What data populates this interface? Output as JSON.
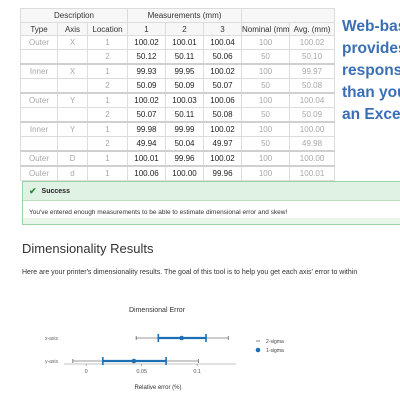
{
  "table": {
    "group_headers": [
      "Description",
      "Measurements (mm)"
    ],
    "columns": [
      "Type",
      "Axis",
      "Location",
      "1",
      "2",
      "3",
      "Nominal (mm)",
      "Avg. (mm)"
    ],
    "rows": [
      [
        "Outer",
        "X",
        "1",
        "100.02",
        "100.01",
        "100.04",
        "100",
        "100.02"
      ],
      [
        "",
        "",
        "2",
        "50.12",
        "50.11",
        "50.06",
        "50",
        "50.10"
      ],
      [
        "Inner",
        "X",
        "1",
        "99.93",
        "99.95",
        "100.02",
        "100",
        "99.97"
      ],
      [
        "",
        "",
        "2",
        "50.09",
        "50.09",
        "50.07",
        "50",
        "50.08"
      ],
      [
        "Outer",
        "Y",
        "1",
        "100.02",
        "100.03",
        "100.06",
        "100",
        "100.04"
      ],
      [
        "",
        "",
        "2",
        "50.07",
        "50.11",
        "50.08",
        "50",
        "50.09"
      ],
      [
        "Inner",
        "Y",
        "1",
        "99.98",
        "99.99",
        "100.02",
        "100",
        "100.00"
      ],
      [
        "",
        "",
        "2",
        "49.94",
        "50.04",
        "49.97",
        "50",
        "49.98"
      ],
      [
        "Outer",
        "D",
        "1",
        "100.01",
        "99.96",
        "100.02",
        "100",
        "100.00"
      ],
      [
        "Outer",
        "d",
        "1",
        "100.06",
        "100.00",
        "99.96",
        "100",
        "100.01"
      ]
    ]
  },
  "promo": {
    "lines": [
      "Web-bas",
      "provides",
      "respons",
      "than you",
      "an Excel"
    ]
  },
  "alert": {
    "title": "Success",
    "message": "You've entered enough measurements to be able to estimate dimensional error and skew!"
  },
  "results": {
    "title": "Dimensionality Results",
    "description": "Here are your printer's dimensionality results. The goal of this tool is to help you get each axis' error to within"
  },
  "chart_data": {
    "type": "scatter",
    "title": "Dimensional Error",
    "xlabel": "Relative error (%)",
    "ylabel": "",
    "xlim": [
      -0.02,
      0.135
    ],
    "x_ticks": [
      "0",
      "0.05",
      "0.1"
    ],
    "categories": [
      "x-axis",
      "y-axis"
    ],
    "legend": {
      "position": "right",
      "entries": [
        "2-sigma",
        "1-sigma"
      ]
    },
    "series": [
      {
        "name": "1-sigma",
        "center": [
          0.086,
          0.043
        ],
        "low": [
          0.065,
          0.015
        ],
        "high": [
          0.108,
          0.072
        ]
      },
      {
        "name": "2-sigma",
        "low": [
          0.045,
          -0.012
        ],
        "high": [
          0.128,
          0.101
        ]
      }
    ],
    "colors": {
      "one_sigma": "#1f6fb4",
      "two_sigma": "#333333"
    }
  }
}
